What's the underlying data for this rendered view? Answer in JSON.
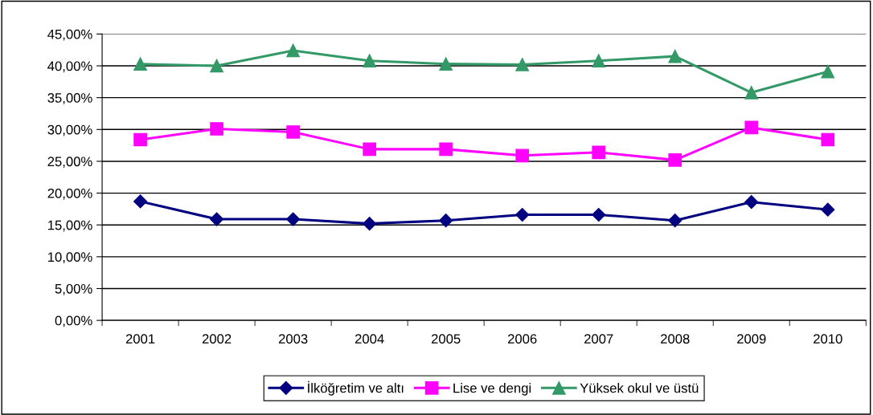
{
  "chart_data": {
    "type": "line",
    "categories": [
      "2001",
      "2002",
      "2003",
      "2004",
      "2005",
      "2006",
      "2007",
      "2008",
      "2009",
      "2010"
    ],
    "series": [
      {
        "name": "İlköğretim ve altı",
        "color": "#000080",
        "marker": "diamond",
        "values": [
          18.7,
          15.9,
          15.9,
          15.2,
          15.7,
          16.6,
          16.6,
          15.7,
          18.6,
          17.4
        ]
      },
      {
        "name": "Lise ve dengi",
        "color": "#ff00ff",
        "marker": "square",
        "values": [
          28.4,
          30.1,
          29.6,
          26.9,
          26.9,
          25.9,
          26.4,
          25.2,
          30.3,
          28.4
        ]
      },
      {
        "name": "Yüksek okul ve üstü",
        "color": "#339966",
        "marker": "triangle",
        "values": [
          40.3,
          40.0,
          42.4,
          40.8,
          40.3,
          40.2,
          40.8,
          41.5,
          35.8,
          39.1
        ]
      }
    ],
    "ylim": [
      0,
      45
    ],
    "yticks": [
      {
        "value": 0,
        "label": "0,00%"
      },
      {
        "value": 5,
        "label": "5,00%"
      },
      {
        "value": 10,
        "label": "10,00%"
      },
      {
        "value": 15,
        "label": "15,00%"
      },
      {
        "value": 20,
        "label": "20,00%"
      },
      {
        "value": 25,
        "label": "25,00%"
      },
      {
        "value": 30,
        "label": "30,00%"
      },
      {
        "value": 35,
        "label": "35,00%"
      },
      {
        "value": 40,
        "label": "40,00%"
      },
      {
        "value": 45,
        "label": "45,00%"
      }
    ],
    "grid": "y",
    "legend": "bottom",
    "line_style": "solid"
  }
}
